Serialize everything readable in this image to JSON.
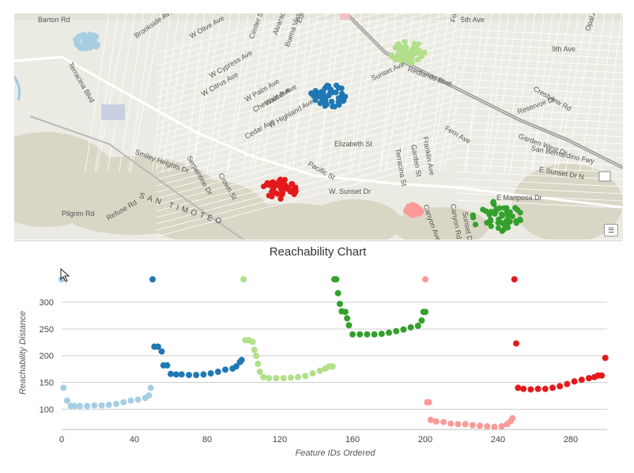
{
  "map": {
    "labels": [
      {
        "text": "Barton Rd",
        "x": 30,
        "y": 3,
        "rot": 0
      },
      {
        "text": "5th Ave",
        "x": 565,
        "y": 3,
        "rot": 0
      },
      {
        "text": "9th Ave",
        "x": 680,
        "y": 40,
        "rot": 0
      },
      {
        "text": "Opal Ave",
        "x": 720,
        "y": 20,
        "rot": -70
      },
      {
        "text": "Brookside Ave",
        "x": 150,
        "y": 25,
        "rot": -35
      },
      {
        "text": "W Olive Ave",
        "x": 220,
        "y": 25,
        "rot": -30
      },
      {
        "text": "W Cypress Ave",
        "x": 245,
        "y": 75,
        "rot": -30
      },
      {
        "text": "W Citrus Ave",
        "x": 235,
        "y": 98,
        "rot": -30
      },
      {
        "text": "W Palm Ave",
        "x": 290,
        "y": 105,
        "rot": -30
      },
      {
        "text": "Chestnut Ave",
        "x": 300,
        "y": 118,
        "rot": -30
      },
      {
        "text": "W Highland Ave",
        "x": 320,
        "y": 138,
        "rot": -30
      },
      {
        "text": "Cedar Ave",
        "x": 290,
        "y": 152,
        "rot": -30
      },
      {
        "text": "Walnut Ave",
        "x": 315,
        "y": 110,
        "rot": -30
      },
      {
        "text": "Sunset Ave",
        "x": 450,
        "y": 78,
        "rot": -25
      },
      {
        "text": "Elizabeth St",
        "x": 405,
        "y": 160,
        "rot": 0
      },
      {
        "text": "Terracina Blvd",
        "x": 75,
        "y": 60,
        "rot": 60
      },
      {
        "text": "Smiley Heights Dr",
        "x": 155,
        "y": 170,
        "rot": 20
      },
      {
        "text": "Serpentine Dr",
        "x": 225,
        "y": 178,
        "rot": 60
      },
      {
        "text": "Crown St",
        "x": 265,
        "y": 200,
        "rot": 60
      },
      {
        "text": "SAN TIMOTEO",
        "x": 160,
        "y": 225,
        "rot": 18
      },
      {
        "text": "Pilgrim Rd",
        "x": 60,
        "y": 248,
        "rot": 0
      },
      {
        "text": "Pacific St",
        "x": 375,
        "y": 185,
        "rot": 30
      },
      {
        "text": "W. Sunset Dr",
        "x": 398,
        "y": 220,
        "rot": 0
      },
      {
        "text": "Fern Ave",
        "x": 548,
        "y": 140,
        "rot": 30
      },
      {
        "text": "Center St",
        "x": 295,
        "y": 30,
        "rot": -70
      },
      {
        "text": "Alvarado St",
        "x": 325,
        "y": 25,
        "rot": -70
      },
      {
        "text": "Redlands Blvd",
        "x": 500,
        "y": 65,
        "rot": 20
      },
      {
        "text": "Reservoir Dr",
        "x": 635,
        "y": 120,
        "rot": -20
      },
      {
        "text": "Crestview Rd",
        "x": 660,
        "y": 90,
        "rot": 30
      },
      {
        "text": "Garden West Dr",
        "x": 640,
        "y": 150,
        "rot": 20
      },
      {
        "text": "San Bernardino Fwy",
        "x": 655,
        "y": 165,
        "rot": 12
      },
      {
        "text": "E Sunset Dr N",
        "x": 665,
        "y": 192,
        "rot": 10
      },
      {
        "text": "E Mariposa Dr",
        "x": 610,
        "y": 228,
        "rot": 0
      },
      {
        "text": "Canyon Rd",
        "x": 560,
        "y": 240,
        "rot": 80
      },
      {
        "text": "Buena Vista St",
        "x": 340,
        "y": 40,
        "rot": -70
      },
      {
        "text": "Terracina St",
        "x": 490,
        "y": 170,
        "rot": 80
      },
      {
        "text": "Garden St",
        "x": 510,
        "y": 165,
        "rot": 80
      },
      {
        "text": "Franklin Ave",
        "x": 525,
        "y": 155,
        "rot": 80
      },
      {
        "text": "Eureka St",
        "x": 355,
        "y": 10,
        "rot": -70
      },
      {
        "text": "Ford St",
        "x": 550,
        "y": 10,
        "rot": -80
      },
      {
        "text": "Refuse Rd",
        "x": 115,
        "y": 255,
        "rot": -30
      },
      {
        "text": "Canyon Ave",
        "x": 525,
        "y": 240,
        "rot": 70
      },
      {
        "text": "Sunset Dr",
        "x": 575,
        "y": 250,
        "rot": 80
      }
    ],
    "clusters": [
      {
        "color": "#a6cee3",
        "cx": 92,
        "cy": 36,
        "rx": 16,
        "ry": 10,
        "n": 50
      },
      {
        "color": "#b2df8a",
        "cx": 497,
        "cy": 49,
        "rx": 22,
        "ry": 14,
        "n": 50
      },
      {
        "color": "#1f78b4",
        "cx": 397,
        "cy": 104,
        "rx": 22,
        "ry": 15,
        "n": 50
      },
      {
        "color": "#e31a1c",
        "cx": 335,
        "cy": 222,
        "rx": 22,
        "ry": 14,
        "n": 50
      },
      {
        "color": "#fb9a99",
        "cx": 505,
        "cy": 249,
        "rx": 10,
        "ry": 7,
        "n": 50
      },
      {
        "color": "#33a02c",
        "cx": 610,
        "cy": 257,
        "rx": 32,
        "ry": 19,
        "n": 50
      }
    ],
    "control_icon": "list-icon"
  },
  "chart_data": {
    "type": "scatter",
    "title": "Reachability Chart",
    "xlabel": "Feature IDs Ordered",
    "ylabel": "Reachability Distance",
    "xlim": [
      0,
      300
    ],
    "ylim": [
      62,
      355
    ],
    "xticks": [
      0,
      40,
      80,
      120,
      160,
      200,
      240,
      280
    ],
    "yticks": [
      100,
      150,
      200,
      250,
      300
    ],
    "grid": "horizontal",
    "top_markers_y": 343,
    "series": [
      {
        "color": "#a6cee3",
        "points": [
          [
            0,
            343
          ],
          [
            1,
            140
          ],
          [
            3,
            116
          ],
          [
            5,
            106
          ],
          [
            7,
            106
          ],
          [
            10,
            106
          ],
          [
            14,
            106
          ],
          [
            18,
            107
          ],
          [
            22,
            107
          ],
          [
            26,
            108
          ],
          [
            30,
            110
          ],
          [
            34,
            113
          ],
          [
            38,
            116
          ],
          [
            42,
            118
          ],
          [
            46,
            121
          ],
          [
            48,
            126
          ],
          [
            49,
            140
          ]
        ]
      },
      {
        "color": "#1f78b4",
        "points": [
          [
            50,
            343
          ],
          [
            51,
            217
          ],
          [
            53,
            217
          ],
          [
            55,
            208
          ],
          [
            56,
            182
          ],
          [
            58,
            182
          ],
          [
            60,
            166
          ],
          [
            63,
            165
          ],
          [
            66,
            165
          ],
          [
            70,
            164
          ],
          [
            74,
            164
          ],
          [
            78,
            165
          ],
          [
            82,
            167
          ],
          [
            86,
            170
          ],
          [
            90,
            174
          ],
          [
            94,
            176
          ],
          [
            96,
            180
          ],
          [
            98,
            188
          ],
          [
            99,
            192
          ]
        ]
      },
      {
        "color": "#b2df8a",
        "points": [
          [
            100,
            343
          ],
          [
            101,
            229
          ],
          [
            103,
            229
          ],
          [
            105,
            226
          ],
          [
            106,
            211
          ],
          [
            107,
            200
          ],
          [
            108,
            185
          ],
          [
            109,
            170
          ],
          [
            111,
            160
          ],
          [
            114,
            158
          ],
          [
            118,
            158
          ],
          [
            122,
            158
          ],
          [
            126,
            159
          ],
          [
            130,
            160
          ],
          [
            134,
            162
          ],
          [
            138,
            167
          ],
          [
            142,
            172
          ],
          [
            145,
            176
          ],
          [
            147,
            180
          ],
          [
            149,
            180
          ]
        ]
      },
      {
        "color": "#33a02c",
        "points": [
          [
            150,
            343
          ],
          [
            151,
            343
          ],
          [
            152,
            317
          ],
          [
            153,
            297
          ],
          [
            154,
            283
          ],
          [
            156,
            282
          ],
          [
            157,
            270
          ],
          [
            158,
            257
          ],
          [
            160,
            240
          ],
          [
            164,
            240
          ],
          [
            168,
            240
          ],
          [
            172,
            240
          ],
          [
            176,
            241
          ],
          [
            180,
            243
          ],
          [
            184,
            246
          ],
          [
            188,
            249
          ],
          [
            192,
            253
          ],
          [
            196,
            256
          ],
          [
            198,
            266
          ],
          [
            199,
            282
          ],
          [
            200,
            282
          ]
        ]
      },
      {
        "color": "#fb9a99",
        "points": [
          [
            200,
            343
          ],
          [
            201,
            113
          ],
          [
            202,
            113
          ],
          [
            203,
            80
          ],
          [
            206,
            77
          ],
          [
            210,
            76
          ],
          [
            214,
            73
          ],
          [
            218,
            72
          ],
          [
            222,
            72
          ],
          [
            226,
            70
          ],
          [
            230,
            69
          ],
          [
            234,
            68
          ],
          [
            238,
            67
          ],
          [
            242,
            68
          ],
          [
            245,
            72
          ],
          [
            247,
            78
          ],
          [
            248,
            83
          ]
        ]
      },
      {
        "color": "#e31a1c",
        "points": [
          [
            249,
            343
          ],
          [
            250,
            223
          ],
          [
            251,
            140
          ],
          [
            254,
            138
          ],
          [
            258,
            137
          ],
          [
            262,
            138
          ],
          [
            266,
            138
          ],
          [
            270,
            140
          ],
          [
            274,
            143
          ],
          [
            278,
            147
          ],
          [
            282,
            152
          ],
          [
            286,
            155
          ],
          [
            290,
            158
          ],
          [
            293,
            160
          ],
          [
            295,
            163
          ],
          [
            297,
            163
          ],
          [
            299,
            196
          ]
        ]
      }
    ]
  }
}
